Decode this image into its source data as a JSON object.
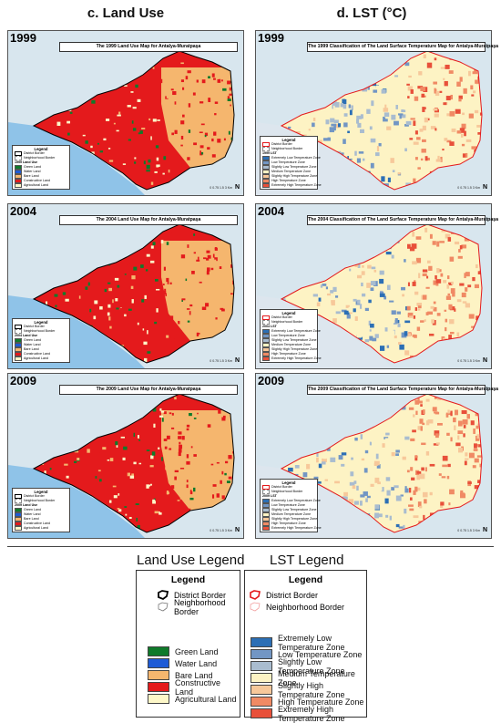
{
  "headers": {
    "land_use": "c. Land Use",
    "lst": "d. LST (°C)"
  },
  "panels": {
    "lu1999": {
      "year": "1999",
      "title": "The 1999 Land Use Map for Antalya-Muratpaşa",
      "legend_title": "Legend",
      "legend_items": [
        "District Border",
        "Neighborhood Border",
        "1999 Land Use",
        "Green Land",
        "Water Land",
        "Bare Land",
        "Constructive Land",
        "Agricultural Land"
      ]
    },
    "lu2004": {
      "year": "2004",
      "title": "The 2004 Land Use Map for Antalya-Muratpaşa",
      "legend_title": "Legend",
      "legend_items": [
        "District Border",
        "Neighborhood Border",
        "2004 Land Use",
        "Green Land",
        "Water Land",
        "Bare Land",
        "Constructive Land",
        "Agricultural Land"
      ]
    },
    "lu2009": {
      "year": "2009",
      "title": "The 2009 Land Use Map for Antalya-Muratpaşa",
      "legend_title": "Legend",
      "legend_items": [
        "District Border",
        "Neighborhood Border",
        "2009 Land Use",
        "Green Land",
        "Water Land",
        "Bare Land",
        "Constructive Land",
        "Agricultural Land"
      ]
    },
    "lst1999": {
      "year": "1999",
      "title": "The 1999 Classification of The Land Surface Temperature Map for Antalya-Muratpaşa",
      "legend_title": "Legend",
      "legend_items": [
        "District Border",
        "Neighborhood Border",
        "1999 LST",
        "Extremely Low Temperature Zone",
        "Low Temperature Zone",
        "Slightly Low Temperature Zone",
        "Medium Temperature Zone",
        "Slightly High Temperature Zone",
        "High Temperature Zone",
        "Extremely High Temperature Zone"
      ]
    },
    "lst2004": {
      "year": "2004",
      "title": "The 2004 Classification of The Land Surface Temperature Map for Antalya-Muratpaşa",
      "legend_title": "Legend",
      "legend_items": [
        "District Border",
        "Neighborhood Border",
        "2004 LST",
        "Extremely Low Temperature Zone",
        "Low Temperature Zone",
        "Slightly Low Temperature Zone",
        "Medium Temperature Zone",
        "Slightly High Temperature Zone",
        "High Temperature Zone",
        "Extremely High Temperature Zone"
      ]
    },
    "lst2009": {
      "year": "2009",
      "title": "The 2009 Classification of The Land Surface Temperature Map for Antalya-Muratpaşa",
      "legend_title": "Legend",
      "legend_items": [
        "District Border",
        "Neighborhood Border",
        "2009 LST",
        "Extremely Low Temperature Zone",
        "Low Temperature Zone",
        "Slightly Low Temperature Zone",
        "Medium Temperature Zone",
        "Slightly High Temperature Zone",
        "High Temperature Zone",
        "Extremely High Temperature Zone"
      ]
    }
  },
  "scale_text": "0   0.75  1.5        3 Km",
  "north_label": "N",
  "land_use_legend": {
    "heading": "Land Use Legend",
    "title": "Legend",
    "district_border": "District Border",
    "neighborhood_border": "Neighborhood Border",
    "classes": [
      {
        "label": "Green Land",
        "color": "#0f7a2a"
      },
      {
        "label": "Water Land",
        "color": "#1e5bd6"
      },
      {
        "label": "Bare Land",
        "color": "#f5b66e"
      },
      {
        "label": "Constructive Land",
        "color": "#e41a1c"
      },
      {
        "label": "Agricultural Land",
        "color": "#fdf7c8"
      }
    ]
  },
  "lst_legend": {
    "heading": "LST Legend",
    "title": "Legend",
    "district_border": "District Border",
    "neighborhood_border": "Neighborhood Border",
    "classes": [
      {
        "label": "Extremely Low Temperature Zone",
        "color": "#2c6fb5"
      },
      {
        "label": "Low Temperature Zone",
        "color": "#7296c4"
      },
      {
        "label": "Slightly Low Temperature Zone",
        "color": "#a9bccf"
      },
      {
        "label": "Medium Temperature Zone",
        "color": "#fdf3c4"
      },
      {
        "label": "Slightly High Temperature Zone",
        "color": "#f7c89a"
      },
      {
        "label": "High Temperature Zone",
        "color": "#f08a64"
      },
      {
        "label": "Extremely High Temperature Zone",
        "color": "#e8503a"
      }
    ]
  }
}
